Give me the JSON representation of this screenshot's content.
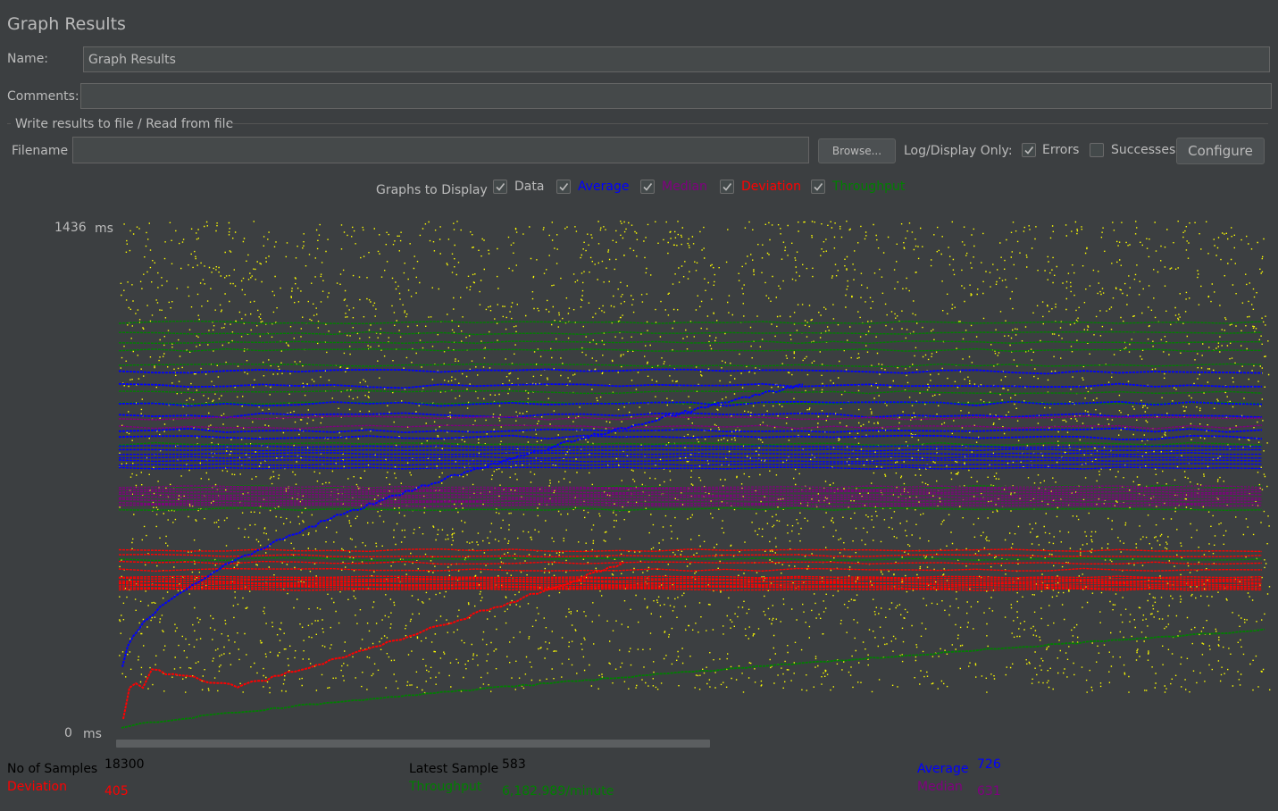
{
  "panel": {
    "title": "Graph Results",
    "name_label": "Name:",
    "name_value": "Graph Results",
    "comments_label": "Comments:",
    "comments_value": ""
  },
  "file_section": {
    "legend": "Write results to file / Read from file",
    "filename_label": "Filename",
    "filename_value": "",
    "browse_label": "Browse...",
    "log_display_label": "Log/Display Only:",
    "errors_label": "Errors",
    "errors_checked": true,
    "successes_label": "Successes",
    "successes_checked": false,
    "configure_label": "Configure"
  },
  "graphs_to_display": {
    "label": "Graphs to Display",
    "items": [
      {
        "label": "Data",
        "checked": true,
        "color": "#bbbbbb"
      },
      {
        "label": "Average",
        "checked": true,
        "color": "#0000ff"
      },
      {
        "label": "Median",
        "checked": true,
        "color": "#800080"
      },
      {
        "label": "Deviation",
        "checked": true,
        "color": "#ff0000"
      },
      {
        "label": "Throughput",
        "checked": true,
        "color": "#008000"
      }
    ]
  },
  "graph": {
    "y_max_label": "1436",
    "y_min_label": "0",
    "unit": "ms",
    "colors": {
      "data": "#ffff00",
      "average": "#0000ff",
      "median": "#800080",
      "deviation": "#ff0000",
      "throughput": "#008000"
    }
  },
  "chart_data": {
    "type": "scatter",
    "title": "",
    "ylabel": "ms",
    "ylim": [
      0,
      1436
    ],
    "series": [
      {
        "name": "Data"
      },
      {
        "name": "Average"
      },
      {
        "name": "Median"
      },
      {
        "name": "Deviation"
      },
      {
        "name": "Throughput"
      }
    ]
  },
  "stats": {
    "samples_label": "No of Samples",
    "samples_value": "18300",
    "latest_label": "Latest Sample",
    "latest_value": "583",
    "average_label": "Average",
    "average_value": "726",
    "deviation_label": "Deviation",
    "deviation_value": "405",
    "throughput_label": "Throughput",
    "throughput_value": "6,182.989/minute",
    "median_label": "Median",
    "median_value": "631"
  }
}
